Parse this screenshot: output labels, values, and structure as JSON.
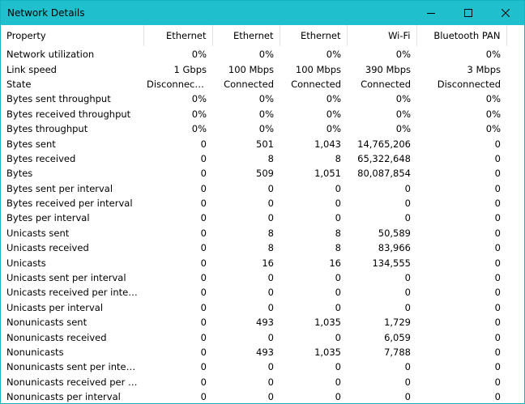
{
  "window": {
    "title": "Network Details"
  },
  "colors": {
    "titlebar": "#1fbfce",
    "border": "#17b3c2",
    "background": "#ffffff"
  },
  "columns": [
    "Property",
    "Ethernet",
    "Ethernet",
    "Ethernet",
    "Wi-Fi",
    "Bluetooth PAN"
  ],
  "rows": [
    [
      "Network utilization",
      "0%",
      "0%",
      "0%",
      "0%",
      "0%"
    ],
    [
      "Link speed",
      "1 Gbps",
      "100 Mbps",
      "100 Mbps",
      "390 Mbps",
      "3 Mbps"
    ],
    [
      "State",
      "Disconnected",
      "Connected",
      "Connected",
      "Connected",
      "Disconnected"
    ],
    [
      "Bytes sent throughput",
      "0%",
      "0%",
      "0%",
      "0%",
      "0%"
    ],
    [
      "Bytes received throughput",
      "0%",
      "0%",
      "0%",
      "0%",
      "0%"
    ],
    [
      "Bytes throughput",
      "0%",
      "0%",
      "0%",
      "0%",
      "0%"
    ],
    [
      "Bytes sent",
      "0",
      "501",
      "1,043",
      "14,765,206",
      "0"
    ],
    [
      "Bytes received",
      "0",
      "8",
      "8",
      "65,322,648",
      "0"
    ],
    [
      "Bytes",
      "0",
      "509",
      "1,051",
      "80,087,854",
      "0"
    ],
    [
      "Bytes sent per interval",
      "0",
      "0",
      "0",
      "0",
      "0"
    ],
    [
      "Bytes received per interval",
      "0",
      "0",
      "0",
      "0",
      "0"
    ],
    [
      "Bytes per interval",
      "0",
      "0",
      "0",
      "0",
      "0"
    ],
    [
      "Unicasts sent",
      "0",
      "8",
      "8",
      "50,589",
      "0"
    ],
    [
      "Unicasts received",
      "0",
      "8",
      "8",
      "83,966",
      "0"
    ],
    [
      "Unicasts",
      "0",
      "16",
      "16",
      "134,555",
      "0"
    ],
    [
      "Unicasts sent per interval",
      "0",
      "0",
      "0",
      "0",
      "0"
    ],
    [
      "Unicasts received per interval",
      "0",
      "0",
      "0",
      "0",
      "0"
    ],
    [
      "Unicasts per interval",
      "0",
      "0",
      "0",
      "0",
      "0"
    ],
    [
      "Nonunicasts sent",
      "0",
      "493",
      "1,035",
      "1,729",
      "0"
    ],
    [
      "Nonunicasts received",
      "0",
      "0",
      "0",
      "6,059",
      "0"
    ],
    [
      "Nonunicasts",
      "0",
      "493",
      "1,035",
      "7,788",
      "0"
    ],
    [
      "Nonunicasts sent per interval",
      "0",
      "0",
      "0",
      "0",
      "0"
    ],
    [
      "Nonunicasts received per inter...",
      "0",
      "0",
      "0",
      "0",
      "0"
    ],
    [
      "Nonunicasts per interval",
      "0",
      "0",
      "0",
      "0",
      "0"
    ]
  ],
  "icons": {
    "minimize": "minimize-icon",
    "maximize": "maximize-icon",
    "close": "close-icon"
  }
}
